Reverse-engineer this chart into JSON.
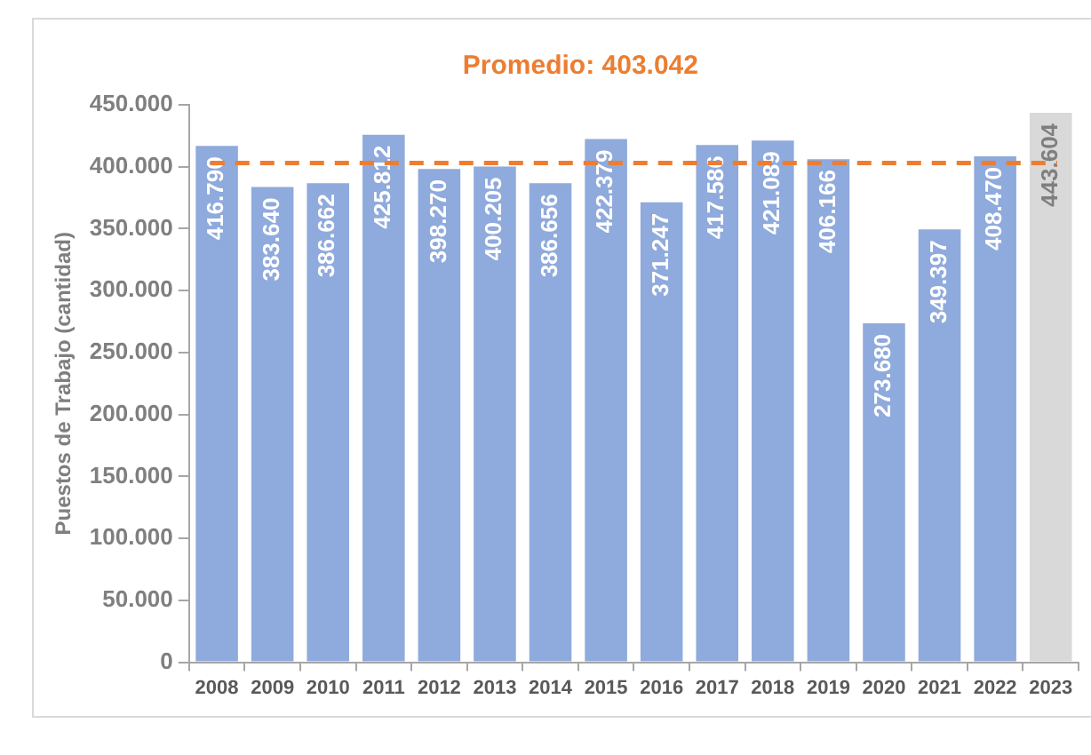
{
  "chart_data": {
    "type": "bar",
    "ylabel": "Puestos de Trabajo (cantidad)",
    "categories": [
      "2008",
      "2009",
      "2010",
      "2011",
      "2012",
      "2013",
      "2014",
      "2015",
      "2016",
      "2017",
      "2018",
      "2019",
      "2020",
      "2021",
      "2022",
      "2023"
    ],
    "values": [
      416790,
      383640,
      386662,
      425812,
      398270,
      400205,
      386656,
      422379,
      371247,
      417586,
      421089,
      406166,
      273680,
      349397,
      408470,
      443604
    ],
    "colors": [
      "#8faadc",
      "#8faadc",
      "#8faadc",
      "#8faadc",
      "#8faadc",
      "#8faadc",
      "#8faadc",
      "#8faadc",
      "#8faadc",
      "#8faadc",
      "#8faadc",
      "#8faadc",
      "#8faadc",
      "#8faadc",
      "#8faadc",
      "#d9d9d9"
    ],
    "value_labels": [
      "416.790",
      "383.640",
      "386.662",
      "425.812",
      "398.270",
      "400.205",
      "386.656",
      "422.379",
      "371.247",
      "417.586",
      "421.089",
      "406.166",
      "273.680",
      "349.397",
      "408.470",
      "443.604"
    ],
    "ylim": [
      0,
      450000
    ],
    "yticks": [
      {
        "value": 0,
        "label": "0"
      },
      {
        "value": 50000,
        "label": "50.000"
      },
      {
        "value": 100000,
        "label": "100.000"
      },
      {
        "value": 150000,
        "label": "150.000"
      },
      {
        "value": 200000,
        "label": "200.000"
      },
      {
        "value": 250000,
        "label": "250.000"
      },
      {
        "value": 300000,
        "label": "300.000"
      },
      {
        "value": 350000,
        "label": "350.000"
      },
      {
        "value": 400000,
        "label": "400.000"
      },
      {
        "value": 450000,
        "label": "450.000"
      }
    ],
    "ref_lines": [
      {
        "axis": "y",
        "value": 403042,
        "label": "Promedio: 403.042",
        "color": "#ed7d31",
        "line_style": "dashed"
      }
    ],
    "grid": false,
    "legend": false
  }
}
